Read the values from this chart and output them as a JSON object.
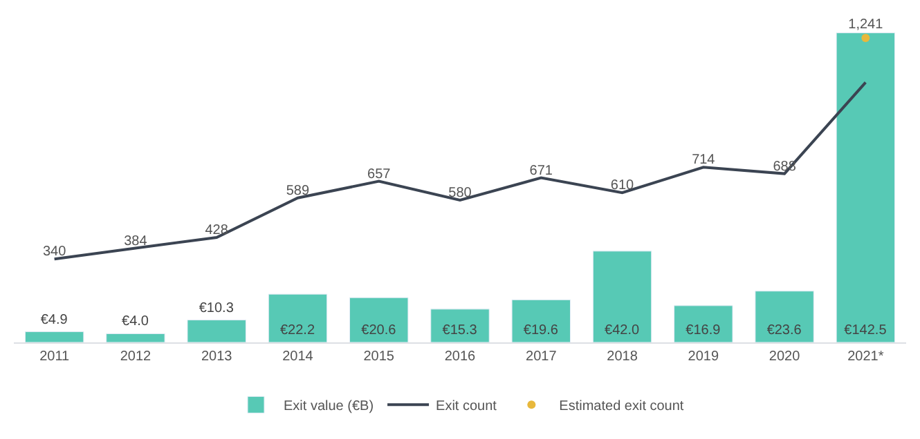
{
  "chart_data": {
    "type": "bar",
    "categories": [
      "2011",
      "2012",
      "2013",
      "2014",
      "2015",
      "2016",
      "2017",
      "2018",
      "2019",
      "2020",
      "2021*"
    ],
    "series": [
      {
        "name": "Exit value (€B)",
        "color": "#57c9b5",
        "values": [
          4.9,
          4.0,
          10.3,
          22.2,
          20.6,
          15.3,
          19.6,
          42.0,
          16.9,
          23.6,
          142.5
        ],
        "value_labels": [
          "€4.9",
          "€4.0",
          "€10.3",
          "€22.2",
          "€20.6",
          "€15.3",
          "€19.6",
          "€42.0",
          "€16.9",
          "€23.6",
          "€142.5"
        ]
      },
      {
        "name": "Exit count",
        "type": "line",
        "axis": "y2",
        "color": "#3b4452",
        "values": [
          340,
          384,
          428,
          589,
          657,
          580,
          671,
          610,
          714,
          688,
          1060
        ],
        "value_labels": [
          "340",
          "384",
          "428",
          "589",
          "657",
          "580",
          "671",
          "610",
          "714",
          "688",
          null
        ]
      },
      {
        "name": "Estimated exit count",
        "type": "scatter",
        "axis": "y2",
        "color": "#e8b83c",
        "x": [
          "2021*"
        ],
        "values": [
          1241
        ],
        "value_labels": [
          "1,241"
        ]
      }
    ],
    "tick_labels": "x",
    "legend": "bottom",
    "line_style": "solid"
  }
}
